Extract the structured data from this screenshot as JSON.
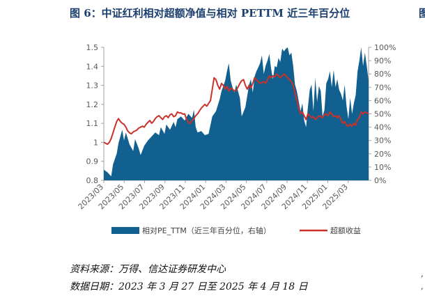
{
  "title": "图 6：中证红利相对超额净值与相对 PETTM 近三年百分位",
  "edge_mark": "图",
  "source": "资料来源：万得、信达证券研发中心",
  "date_range": "数据日期：2023 年 3 月 27 日至 2025 年 4 月 18 日",
  "colors": {
    "area": "#11608f",
    "line": "#c8322b",
    "axis": "#a0a0a0",
    "text": "#595959"
  },
  "chart_data": {
    "type": "area",
    "title": "",
    "x_tick_labels": [
      "2023/03",
      "2023/05",
      "2023/07",
      "2023/09",
      "2023/11",
      "2024/01",
      "2024/03",
      "2024/05",
      "2024/07",
      "2024/09",
      "2024/11",
      "2025/01",
      "2025/03"
    ],
    "y_left": {
      "ylim": [
        0.8,
        1.5
      ],
      "ticks": [
        "0.8",
        "0.9",
        "1",
        "1.1",
        "1.2",
        "1.3",
        "1.4",
        "1.5"
      ]
    },
    "y_right": {
      "ylim": [
        0,
        100
      ],
      "ticks": [
        "0%",
        "10%",
        "20%",
        "30%",
        "40%",
        "50%",
        "60%",
        "70%",
        "80%",
        "90%",
        "100%"
      ]
    },
    "series": [
      {
        "name": "相对PE_TTM（近三年百分位，右轴）",
        "kind": "area",
        "axis": "right",
        "points": [
          [
            0,
            8
          ],
          [
            2,
            6
          ],
          [
            4,
            3
          ],
          [
            5,
            12
          ],
          [
            7,
            20
          ],
          [
            8,
            28
          ],
          [
            10,
            38
          ],
          [
            11,
            30
          ],
          [
            12,
            36
          ],
          [
            14,
            27
          ],
          [
            16,
            22
          ],
          [
            17,
            31
          ],
          [
            19,
            24
          ],
          [
            20,
            19
          ],
          [
            22,
            26
          ],
          [
            24,
            30
          ],
          [
            26,
            33
          ],
          [
            28,
            36
          ],
          [
            30,
            34
          ],
          [
            31,
            40
          ],
          [
            33,
            35
          ],
          [
            34,
            42
          ],
          [
            36,
            38
          ],
          [
            38,
            44
          ],
          [
            39,
            40
          ],
          [
            40,
            46
          ],
          [
            42,
            48
          ],
          [
            44,
            45
          ],
          [
            46,
            50
          ],
          [
            48,
            47
          ],
          [
            49,
            53
          ],
          [
            50,
            40
          ],
          [
            51,
            36
          ],
          [
            53,
            37
          ],
          [
            55,
            34
          ],
          [
            57,
            35
          ],
          [
            59,
            48
          ],
          [
            61,
            52
          ],
          [
            63,
            61
          ],
          [
            64,
            67
          ],
          [
            66,
            75
          ],
          [
            67,
            82
          ],
          [
            68,
            88
          ],
          [
            69,
            75
          ],
          [
            70,
            70
          ],
          [
            71,
            66
          ],
          [
            72,
            72
          ],
          [
            73,
            67
          ],
          [
            74,
            62
          ],
          [
            75,
            48
          ],
          [
            77,
            55
          ],
          [
            79,
            72
          ],
          [
            80,
            76
          ],
          [
            81,
            66
          ],
          [
            82,
            78
          ],
          [
            83,
            82
          ],
          [
            84,
            85
          ],
          [
            85,
            88
          ],
          [
            86,
            94
          ],
          [
            87,
            80
          ],
          [
            88,
            86
          ],
          [
            89,
            90
          ],
          [
            90,
            95
          ],
          [
            91,
            84
          ],
          [
            92,
            76
          ],
          [
            93,
            86
          ],
          [
            94,
            85
          ],
          [
            95,
            92
          ],
          [
            96,
            89
          ],
          [
            97,
            99
          ],
          [
            98,
            97
          ],
          [
            99,
            99
          ],
          [
            100,
            100
          ],
          [
            101,
            94
          ],
          [
            102,
            96
          ],
          [
            103,
            86
          ],
          [
            104,
            72
          ],
          [
            105,
            67
          ],
          [
            107,
            52
          ],
          [
            108,
            58
          ],
          [
            109,
            45
          ],
          [
            110,
            40
          ],
          [
            111,
            55
          ],
          [
            112,
            68
          ],
          [
            113,
            72
          ],
          [
            114,
            52
          ],
          [
            115,
            77
          ],
          [
            116,
            59
          ],
          [
            117,
            71
          ],
          [
            118,
            67
          ],
          [
            119,
            48
          ],
          [
            120,
            53
          ],
          [
            121,
            73
          ],
          [
            122,
            76
          ],
          [
            123,
            82
          ],
          [
            124,
            70
          ],
          [
            125,
            83
          ],
          [
            126,
            70
          ],
          [
            127,
            76
          ],
          [
            128,
            68
          ],
          [
            129,
            65
          ],
          [
            130,
            60
          ],
          [
            131,
            72
          ],
          [
            132,
            56
          ],
          [
            133,
            46
          ],
          [
            134,
            62
          ],
          [
            135,
            50
          ],
          [
            136,
            58
          ],
          [
            137,
            64
          ],
          [
            138,
            82
          ],
          [
            139,
            90
          ],
          [
            140,
            100
          ],
          [
            141,
            86
          ],
          [
            142,
            96
          ],
          [
            143,
            86
          ],
          [
            144,
            75
          ]
        ]
      },
      {
        "name": "超额收益",
        "kind": "line",
        "axis": "left",
        "points": [
          [
            0,
            1.0
          ],
          [
            1,
            0.995
          ],
          [
            2,
            0.99
          ],
          [
            3,
            1.0
          ],
          [
            4,
            1.02
          ],
          [
            5,
            1.05
          ],
          [
            6,
            1.08
          ],
          [
            7,
            1.11
          ],
          [
            8,
            1.125
          ],
          [
            9,
            1.11
          ],
          [
            10,
            1.1
          ],
          [
            11,
            1.095
          ],
          [
            12,
            1.08
          ],
          [
            13,
            1.06
          ],
          [
            14,
            1.05
          ],
          [
            15,
            1.045
          ],
          [
            16,
            1.055
          ],
          [
            17,
            1.06
          ],
          [
            18,
            1.065
          ],
          [
            19,
            1.075
          ],
          [
            20,
            1.08
          ],
          [
            21,
            1.085
          ],
          [
            22,
            1.08
          ],
          [
            23,
            1.095
          ],
          [
            24,
            1.105
          ],
          [
            25,
            1.115
          ],
          [
            26,
            1.1
          ],
          [
            27,
            1.11
          ],
          [
            28,
            1.125
          ],
          [
            29,
            1.135
          ],
          [
            30,
            1.14
          ],
          [
            31,
            1.13
          ],
          [
            32,
            1.12
          ],
          [
            33,
            1.135
          ],
          [
            34,
            1.14
          ],
          [
            35,
            1.13
          ],
          [
            36,
            1.145
          ],
          [
            37,
            1.15
          ],
          [
            38,
            1.135
          ],
          [
            39,
            1.14
          ],
          [
            40,
            1.16
          ],
          [
            41,
            1.155
          ],
          [
            42,
            1.155
          ],
          [
            43,
            1.148
          ],
          [
            44,
            1.15
          ],
          [
            45,
            1.12
          ],
          [
            46,
            1.105
          ],
          [
            47,
            1.1
          ],
          [
            48,
            1.115
          ],
          [
            49,
            1.125
          ],
          [
            50,
            1.14
          ],
          [
            51,
            1.15
          ],
          [
            52,
            1.165
          ],
          [
            53,
            1.18
          ],
          [
            54,
            1.19
          ],
          [
            55,
            1.2
          ],
          [
            56,
            1.19
          ],
          [
            57,
            1.205
          ],
          [
            58,
            1.22
          ],
          [
            59,
            1.28
          ],
          [
            60,
            1.34
          ],
          [
            61,
            1.33
          ],
          [
            62,
            1.3
          ],
          [
            63,
            1.28
          ],
          [
            64,
            1.31
          ],
          [
            65,
            1.3
          ],
          [
            66,
            1.28
          ],
          [
            67,
            1.295
          ],
          [
            68,
            1.27
          ],
          [
            69,
            1.285
          ],
          [
            70,
            1.28
          ],
          [
            71,
            1.27
          ],
          [
            72,
            1.275
          ],
          [
            73,
            1.29
          ],
          [
            74,
            1.31
          ],
          [
            75,
            1.325
          ],
          [
            76,
            1.33
          ],
          [
            77,
            1.3
          ],
          [
            78,
            1.28
          ],
          [
            79,
            1.3
          ],
          [
            80,
            1.285
          ],
          [
            81,
            1.31
          ],
          [
            82,
            1.34
          ],
          [
            83,
            1.33
          ],
          [
            84,
            1.32
          ],
          [
            85,
            1.31
          ],
          [
            86,
            1.315
          ],
          [
            87,
            1.32
          ],
          [
            88,
            1.31
          ],
          [
            89,
            1.33
          ],
          [
            90,
            1.35
          ],
          [
            91,
            1.34
          ],
          [
            92,
            1.35
          ],
          [
            93,
            1.345
          ],
          [
            94,
            1.36
          ],
          [
            95,
            1.35
          ],
          [
            96,
            1.34
          ],
          [
            97,
            1.35
          ],
          [
            98,
            1.36
          ],
          [
            99,
            1.35
          ],
          [
            100,
            1.34
          ],
          [
            101,
            1.33
          ],
          [
            102,
            1.32
          ],
          [
            103,
            1.3
          ],
          [
            104,
            1.26
          ],
          [
            105,
            1.22
          ],
          [
            106,
            1.18
          ],
          [
            107,
            1.15
          ],
          [
            108,
            1.16
          ],
          [
            109,
            1.14
          ],
          [
            110,
            1.12
          ],
          [
            111,
            1.15
          ],
          [
            112,
            1.14
          ],
          [
            113,
            1.13
          ],
          [
            114,
            1.135
          ],
          [
            115,
            1.12
          ],
          [
            116,
            1.13
          ],
          [
            117,
            1.14
          ],
          [
            118,
            1.135
          ],
          [
            119,
            1.13
          ],
          [
            120,
            1.145
          ],
          [
            121,
            1.15
          ],
          [
            122,
            1.14
          ],
          [
            123,
            1.16
          ],
          [
            124,
            1.15
          ],
          [
            125,
            1.135
          ],
          [
            126,
            1.14
          ],
          [
            127,
            1.13
          ],
          [
            128,
            1.14
          ],
          [
            129,
            1.12
          ],
          [
            130,
            1.1
          ],
          [
            131,
            1.11
          ],
          [
            132,
            1.09
          ],
          [
            133,
            1.085
          ],
          [
            134,
            1.095
          ],
          [
            135,
            1.085
          ],
          [
            136,
            1.1
          ],
          [
            137,
            1.09
          ],
          [
            138,
            1.12
          ],
          [
            139,
            1.13
          ],
          [
            140,
            1.16
          ],
          [
            141,
            1.15
          ],
          [
            142,
            1.16
          ],
          [
            143,
            1.155
          ],
          [
            144,
            1.15
          ]
        ]
      }
    ],
    "legend_position": "bottom"
  }
}
